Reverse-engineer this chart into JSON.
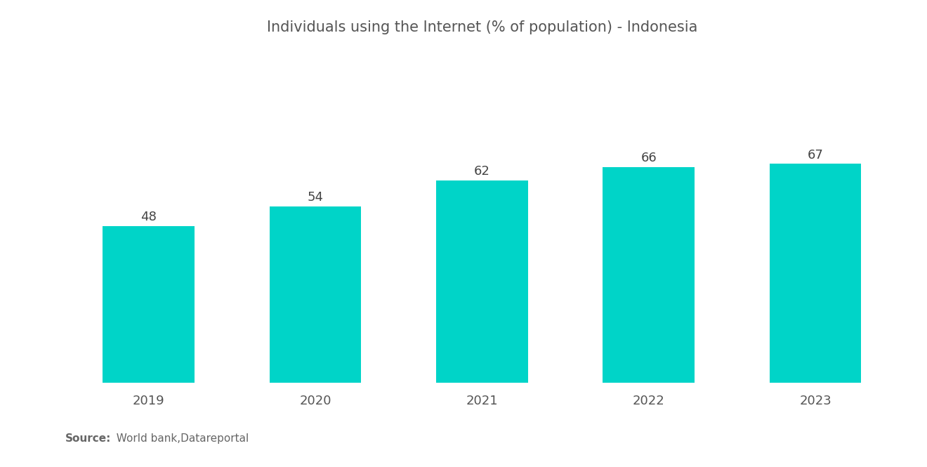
{
  "title": "Individuals using the Internet (% of population) - Indonesia",
  "categories": [
    "2019",
    "2020",
    "2021",
    "2022",
    "2023"
  ],
  "values": [
    48,
    54,
    62,
    66,
    67
  ],
  "bar_color": "#00D4C8",
  "background_color": "#ffffff",
  "source_bold": "Source:",
  "source_normal": "  World bank,Datareportal",
  "title_fontsize": 15,
  "label_fontsize": 13,
  "source_fontsize": 11,
  "tick_fontsize": 13,
  "ylim": [
    0,
    100
  ],
  "bar_width": 0.55
}
